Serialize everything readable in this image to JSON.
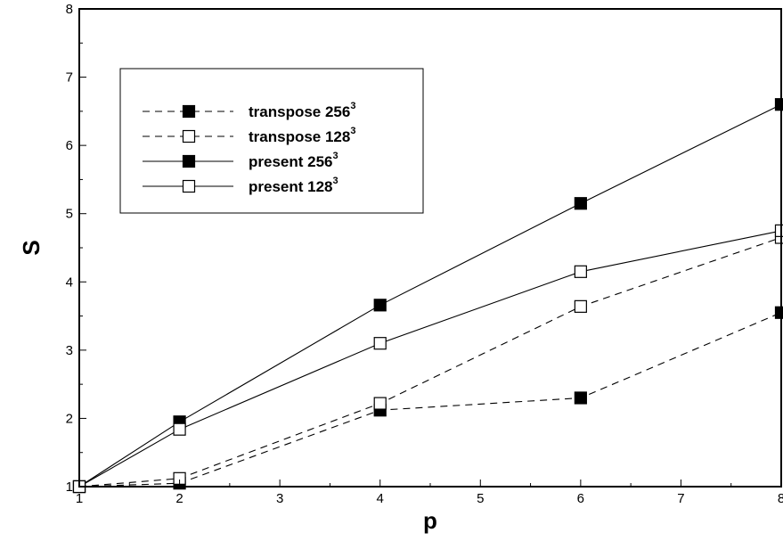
{
  "chart_data": {
    "type": "line",
    "xlabel": "p",
    "ylabel": "S",
    "xlim": [
      1,
      8
    ],
    "ylim": [
      1,
      8
    ],
    "xticks": [
      "1",
      "2",
      "3",
      "4",
      "5",
      "6",
      "7",
      "8"
    ],
    "yticks": [
      "1",
      "2",
      "3",
      "4",
      "5",
      "6",
      "7",
      "8"
    ],
    "grid": false,
    "legend_position": "top-left",
    "series": [
      {
        "id": "transpose-256",
        "name": "transpose 256",
        "sup": "3",
        "line_style": "dashed",
        "marker": "filled-square",
        "x": [
          1,
          2,
          4,
          6,
          8
        ],
        "y": [
          1.0,
          1.05,
          2.12,
          2.3,
          3.55
        ]
      },
      {
        "id": "transpose-128",
        "name": "transpose 128",
        "sup": "3",
        "line_style": "dashed",
        "marker": "open-square",
        "x": [
          1,
          2,
          4,
          6,
          8
        ],
        "y": [
          1.0,
          1.12,
          2.22,
          3.64,
          4.65
        ]
      },
      {
        "id": "present-256",
        "name": "present 256",
        "sup": "3",
        "line_style": "solid",
        "marker": "filled-square",
        "x": [
          1,
          2,
          4,
          6,
          8
        ],
        "y": [
          1.0,
          1.95,
          3.66,
          5.15,
          6.6
        ]
      },
      {
        "id": "present-128",
        "name": "present 128",
        "sup": "3",
        "line_style": "solid",
        "marker": "open-square",
        "x": [
          1,
          2,
          4,
          6,
          8
        ],
        "y": [
          1.0,
          1.84,
          3.1,
          4.15,
          4.75
        ]
      }
    ]
  }
}
